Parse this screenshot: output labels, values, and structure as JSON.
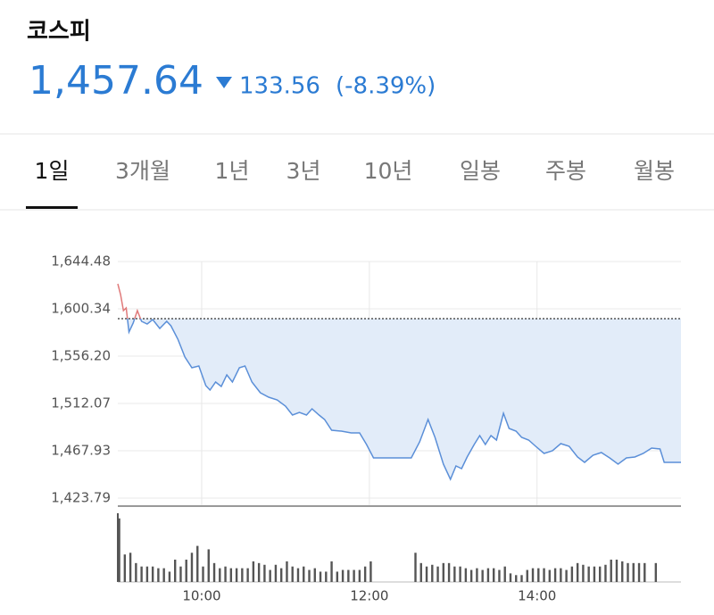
{
  "header": {
    "title": "코스피",
    "price": "1,457.64",
    "change": "133.56",
    "change_pct": "(-8.39%)"
  },
  "tabs": [
    "1일",
    "3개월",
    "1년",
    "3년",
    "10년",
    "일봉",
    "주봉",
    "월봉"
  ],
  "selected_tab": 0,
  "chart_data": {
    "type": "line",
    "ylim": [
      1416.3,
      1644.48
    ],
    "yticks": [
      {
        "value": 1644.48,
        "label": "1,644.48"
      },
      {
        "value": 1600.34,
        "label": "1,600.34"
      },
      {
        "value": 1556.2,
        "label": "1,556.20"
      },
      {
        "value": 1512.07,
        "label": "1,512.07"
      },
      {
        "value": 1467.93,
        "label": "1,467.93"
      },
      {
        "value": 1423.79,
        "label": "1,423.79"
      }
    ],
    "xlim": [
      "09:00",
      "15:43"
    ],
    "xticks": [
      "10:00",
      "12:00",
      "14:00"
    ],
    "grid": true,
    "reference": 1591.2,
    "line": {
      "color": "#5b8fd8",
      "color_above": "#e07a7a",
      "fill": "#e2ecf9",
      "x": [
        "09:00",
        "09:02",
        "09:04",
        "09:06",
        "09:08",
        "09:11",
        "09:14",
        "09:17",
        "09:21",
        "09:25",
        "09:30",
        "09:35",
        "09:38",
        "09:43",
        "09:48",
        "09:53",
        "09:58",
        "10:03",
        "10:06",
        "10:10",
        "10:14",
        "10:18",
        "10:22",
        "10:27",
        "10:31",
        "10:36",
        "10:42",
        "10:48",
        "10:54",
        "11:00",
        "11:05",
        "11:10",
        "11:15",
        "11:19",
        "11:24",
        "11:28",
        "11:33",
        "11:40",
        "11:47",
        "11:53",
        "11:58",
        "12:03",
        "12:30",
        "12:36",
        "12:42",
        "12:47",
        "12:53",
        "12:58",
        "13:02",
        "13:06",
        "13:10",
        "13:15",
        "13:19",
        "13:23",
        "13:27",
        "13:31",
        "13:36",
        "13:40",
        "13:45",
        "13:49",
        "13:54",
        "13:59",
        "14:05",
        "14:11",
        "14:17",
        "14:23",
        "14:29",
        "14:34",
        "14:40",
        "14:46",
        "14:52",
        "14:58",
        "15:04",
        "15:10",
        "15:16",
        "15:22",
        "15:28",
        "15:31",
        "15:43"
      ],
      "values": [
        1623.66,
        1613.67,
        1598.68,
        1601.17,
        1578.69,
        1587.02,
        1598.68,
        1588.68,
        1586.18,
        1590.35,
        1582.02,
        1588.68,
        1584.52,
        1572.03,
        1555.37,
        1545.38,
        1547.04,
        1528.72,
        1524.56,
        1532.05,
        1527.89,
        1538.71,
        1532.05,
        1545.38,
        1547.04,
        1532.05,
        1522.06,
        1517.89,
        1515.4,
        1509.57,
        1501.24,
        1503.74,
        1501.24,
        1507.07,
        1501.24,
        1497.07,
        1487.08,
        1486.25,
        1484.58,
        1484.58,
        1473.76,
        1461.26,
        1461.26,
        1476.25,
        1497.07,
        1480.42,
        1455.43,
        1441.28,
        1453.77,
        1451.27,
        1462.1,
        1473.76,
        1482.08,
        1473.76,
        1482.08,
        1477.92,
        1502.9,
        1488.75,
        1486.25,
        1480.42,
        1477.92,
        1472.09,
        1465.43,
        1467.93,
        1474.59,
        1472.09,
        1462.1,
        1457.1,
        1463.76,
        1466.26,
        1461.26,
        1455.43,
        1461.26,
        1462.1,
        1465.43,
        1470.42,
        1469.59,
        1457.1,
        1457.1
      ]
    },
    "volume": {
      "color": "#555555",
      "vlim": [
        0,
        80
      ],
      "x": [
        "09:01",
        "09:05",
        "09:09",
        "09:13",
        "09:17",
        "09:21",
        "09:25",
        "09:29",
        "09:33",
        "09:37",
        "09:41",
        "09:45",
        "09:49",
        "09:53",
        "09:57",
        "10:01",
        "10:05",
        "10:09",
        "10:13",
        "10:17",
        "10:21",
        "10:25",
        "10:29",
        "10:33",
        "10:37",
        "10:41",
        "10:45",
        "10:49",
        "10:53",
        "10:57",
        "11:01",
        "11:05",
        "11:09",
        "11:13",
        "11:17",
        "11:21",
        "11:25",
        "11:29",
        "11:33",
        "11:37",
        "11:41",
        "11:45",
        "11:49",
        "11:53",
        "11:57",
        "12:01",
        "12:33",
        "12:37",
        "12:41",
        "12:45",
        "12:49",
        "12:53",
        "12:57",
        "13:01",
        "13:05",
        "13:09",
        "13:13",
        "13:17",
        "13:21",
        "13:25",
        "13:29",
        "13:33",
        "13:37",
        "13:41",
        "13:45",
        "13:49",
        "13:53",
        "13:57",
        "14:01",
        "14:05",
        "14:09",
        "14:13",
        "14:17",
        "14:21",
        "14:25",
        "14:29",
        "14:33",
        "14:37",
        "14:41",
        "14:45",
        "14:49",
        "14:53",
        "14:57",
        "15:01",
        "15:05",
        "15:09",
        "15:13",
        "15:17",
        "15:25"
      ],
      "values": [
        74,
        32,
        34,
        22,
        18,
        18,
        18,
        16,
        16,
        12,
        26,
        18,
        26,
        34,
        42,
        18,
        38,
        22,
        16,
        18,
        16,
        16,
        16,
        16,
        24,
        22,
        20,
        14,
        20,
        16,
        24,
        18,
        16,
        18,
        14,
        16,
        12,
        12,
        24,
        12,
        14,
        14,
        14,
        14,
        18,
        24,
        34,
        22,
        18,
        20,
        18,
        22,
        22,
        18,
        18,
        16,
        14,
        16,
        14,
        16,
        16,
        14,
        18,
        10,
        8,
        8,
        14,
        16,
        16,
        16,
        14,
        16,
        16,
        14,
        18,
        22,
        20,
        18,
        18,
        18,
        20,
        26,
        26,
        24,
        22,
        22,
        22,
        22,
        22
      ]
    }
  }
}
